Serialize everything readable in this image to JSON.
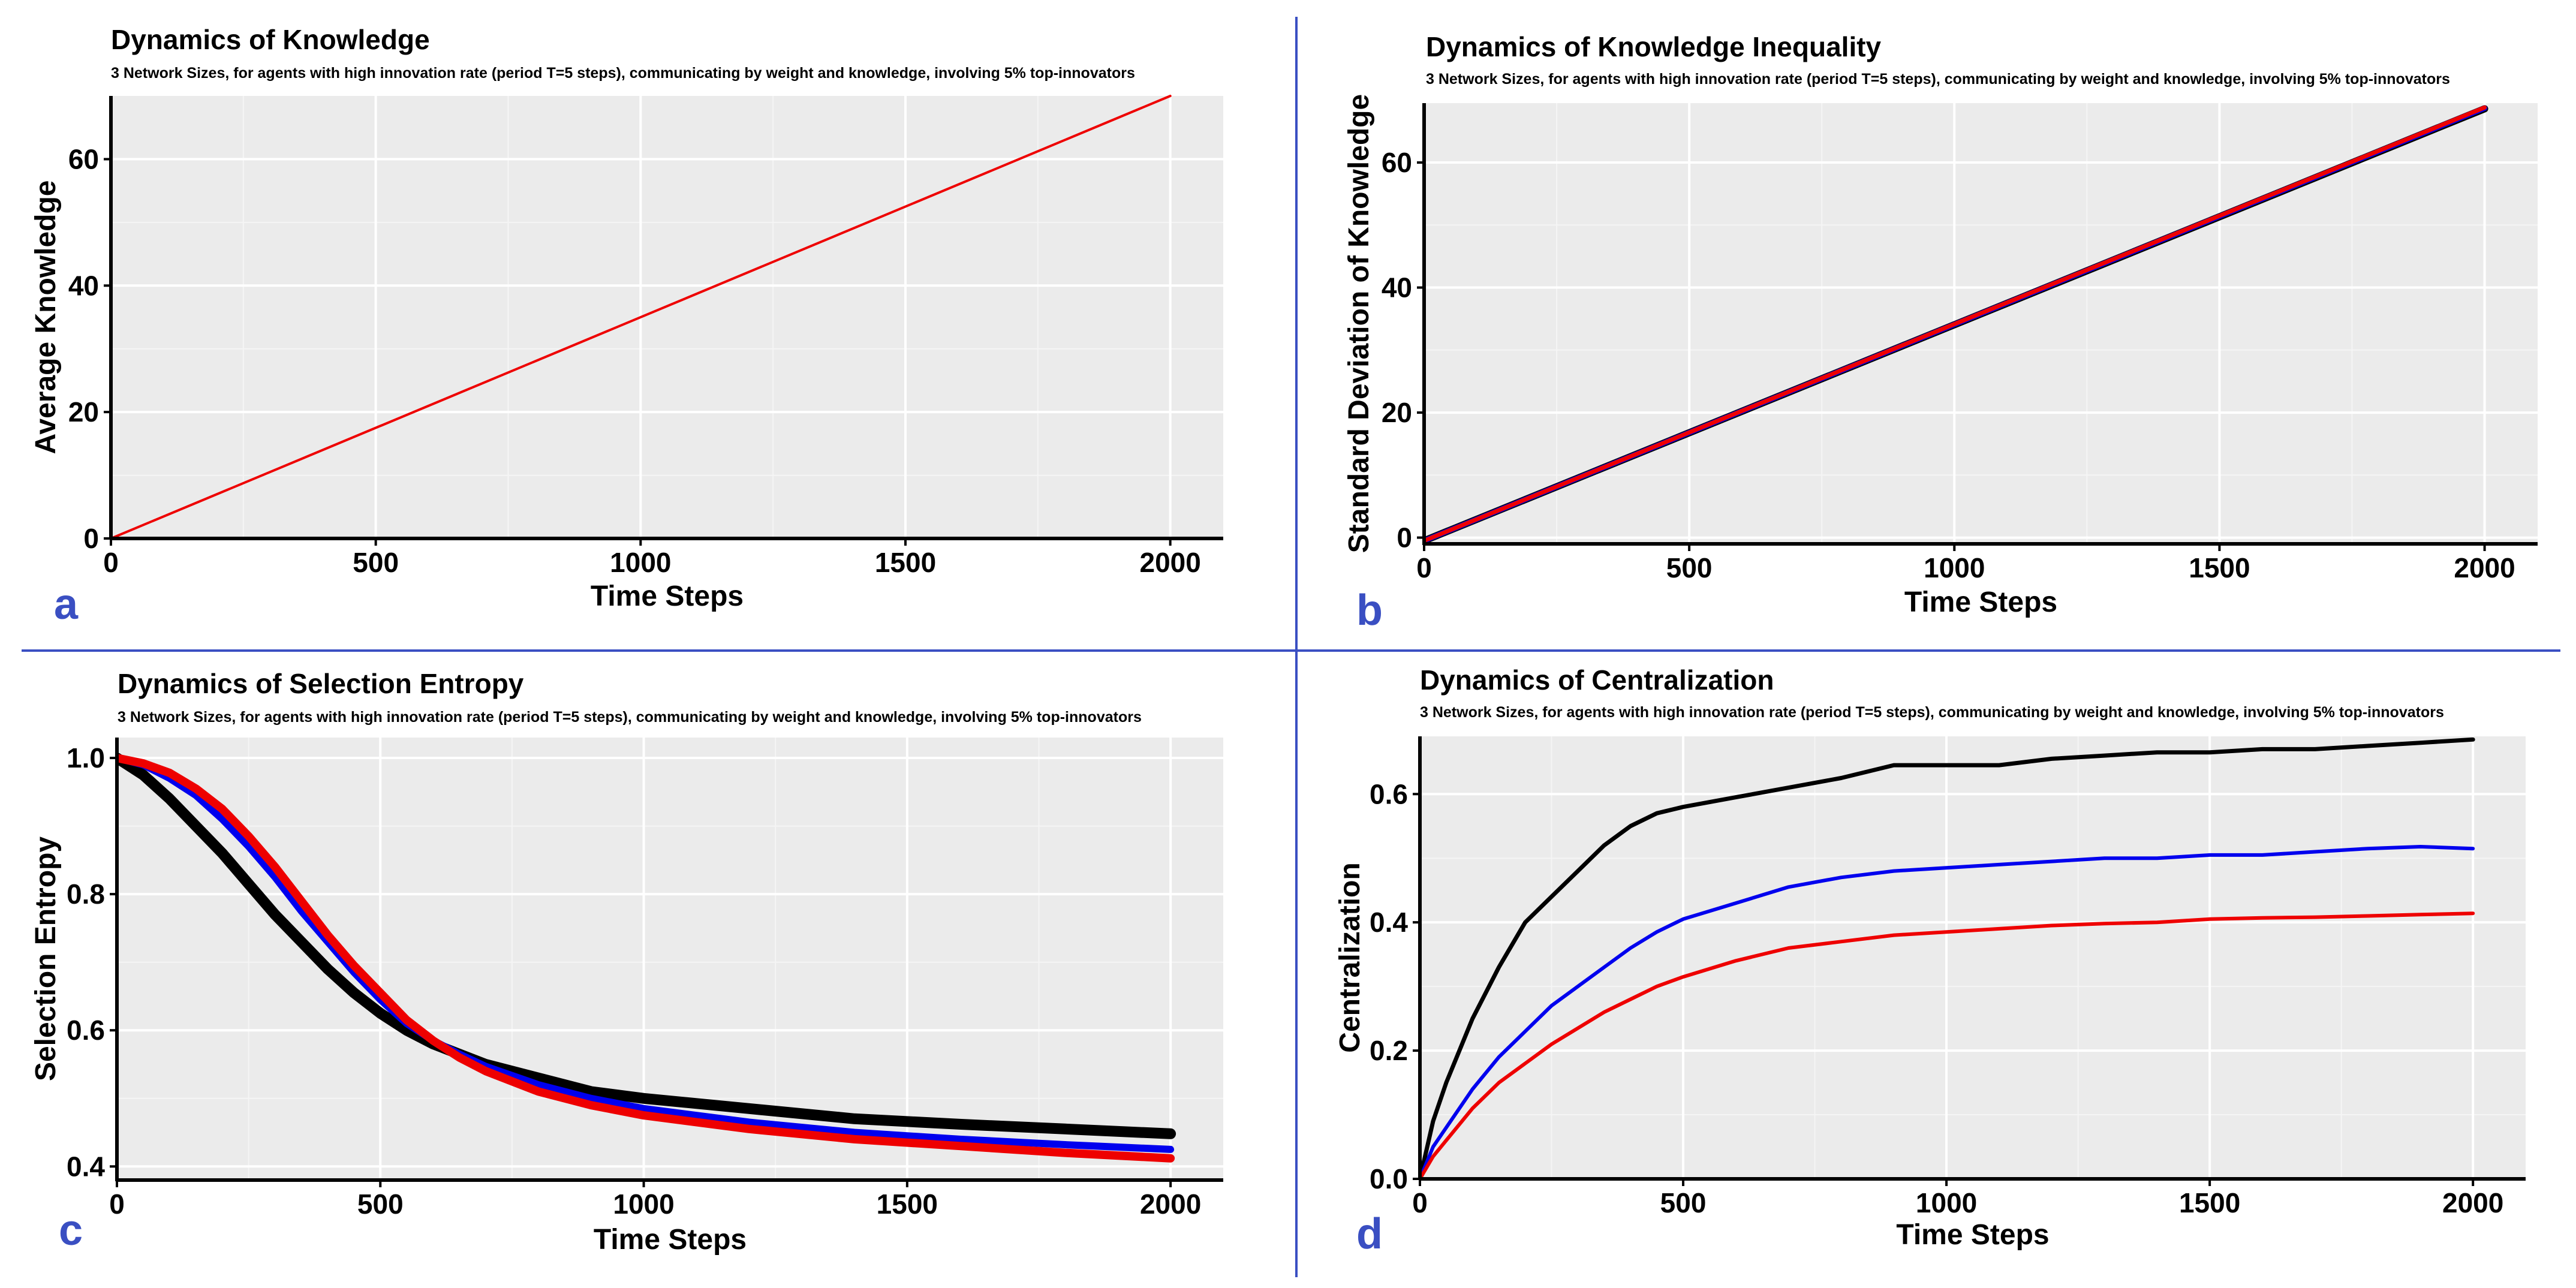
{
  "colors": {
    "divider": "#3a4fc2",
    "panel_letter": "#3a4fc2",
    "panel_bg": "#ebebeb",
    "grid_major": "#ffffff",
    "grid_minor": "#f5f5f5",
    "series_black": "#000000",
    "series_blue": "#0000ee",
    "series_red": "#ee0000"
  },
  "subtitle": "3 Network Sizes, for agents with high innovation rate (period T=5 steps), communicating by weight and knowledge, involving 5% top-innovators",
  "chart_data": [
    {
      "id": "a",
      "type": "line",
      "letter": "a",
      "title": "Dynamics of Knowledge",
      "subtitle": "3 Network Sizes, for agents with high innovation rate (period T=5 steps), communicating by weight and knowledge, involving 5% top-innovators",
      "xlabel": "Time Steps",
      "ylabel": "Average Knowledge",
      "xlim": [
        0,
        2100
      ],
      "ylim": [
        0,
        70
      ],
      "xticks": [
        0,
        500,
        1000,
        1500,
        2000
      ],
      "xtick_labels": [
        "0",
        "500",
        "1000",
        "1500",
        "2000"
      ],
      "yticks": [
        0,
        20,
        40,
        60
      ],
      "ytick_labels": [
        "0",
        "20",
        "40",
        "60"
      ],
      "grid": true,
      "legend": "none",
      "series": [
        {
          "name": "black",
          "color": "#000000",
          "width": 3,
          "x": [
            0,
            2000
          ],
          "y": [
            0,
            70
          ]
        },
        {
          "name": "blue",
          "color": "#0000ee",
          "width": 3,
          "x": [
            0,
            2000
          ],
          "y": [
            0,
            70
          ]
        },
        {
          "name": "red",
          "color": "#ee0000",
          "width": 4,
          "x": [
            0,
            2000
          ],
          "y": [
            0,
            70
          ]
        }
      ]
    },
    {
      "id": "b",
      "type": "line",
      "letter": "b",
      "title": "Dynamics of Knowledge Inequality",
      "subtitle": "3 Network Sizes, for agents with high innovation rate (period T=5 steps), communicating by weight and knowledge, involving 5% top-innovators",
      "xlabel": "Time Steps",
      "ylabel": "Standard Deviation of Knowledge",
      "xlim": [
        0,
        2100
      ],
      "ylim": [
        -1,
        69.5
      ],
      "xticks": [
        0,
        500,
        1000,
        1500,
        2000
      ],
      "xtick_labels": [
        "0",
        "500",
        "1000",
        "1500",
        "2000"
      ],
      "yticks": [
        0,
        20,
        40,
        60
      ],
      "ytick_labels": [
        "0",
        "20",
        "40",
        "60"
      ],
      "grid": true,
      "legend": "none",
      "series": [
        {
          "name": "black",
          "color": "#000000",
          "width": 12,
          "x": [
            0,
            2000
          ],
          "y": [
            -0.5,
            68.6
          ]
        },
        {
          "name": "blue",
          "color": "#0000ee",
          "width": 9,
          "x": [
            0,
            2000
          ],
          "y": [
            -0.5,
            68.7
          ]
        },
        {
          "name": "red",
          "color": "#ee0000",
          "width": 7,
          "x": [
            0,
            2000
          ],
          "y": [
            -0.5,
            68.8
          ]
        }
      ]
    },
    {
      "id": "c",
      "type": "line",
      "letter": "c",
      "title": "Dynamics of Selection Entropy",
      "subtitle": "3 Network Sizes, for agents with high innovation rate (period T=5 steps), communicating by weight and knowledge, involving 5% top-innovators",
      "xlabel": "Time Steps",
      "ylabel": "Selection Entropy",
      "xlim": [
        0,
        2100
      ],
      "ylim": [
        0.38,
        1.03
      ],
      "xticks": [
        0,
        500,
        1000,
        1500,
        2000
      ],
      "xtick_labels": [
        "0",
        "500",
        "1000",
        "1500",
        "2000"
      ],
      "yticks": [
        0.4,
        0.6,
        0.8,
        1.0
      ],
      "ytick_labels": [
        "0.4",
        "0.6",
        "0.8",
        "1.0"
      ],
      "grid": true,
      "legend": "none",
      "series": [
        {
          "name": "black",
          "color": "#000000",
          "width": 18,
          "x": [
            0,
            50,
            100,
            150,
            200,
            250,
            300,
            350,
            400,
            450,
            500,
            550,
            600,
            650,
            700,
            800,
            900,
            1000,
            1200,
            1400,
            1600,
            1800,
            2000
          ],
          "y": [
            1.0,
            0.975,
            0.94,
            0.9,
            0.86,
            0.815,
            0.77,
            0.73,
            0.69,
            0.655,
            0.625,
            0.6,
            0.58,
            0.565,
            0.55,
            0.53,
            0.51,
            0.5,
            0.485,
            0.47,
            0.462,
            0.455,
            0.448
          ]
        },
        {
          "name": "blue",
          "color": "#0000ee",
          "width": 12,
          "x": [
            0,
            50,
            100,
            150,
            200,
            250,
            300,
            350,
            400,
            450,
            500,
            550,
            600,
            650,
            700,
            800,
            900,
            1000,
            1200,
            1400,
            1600,
            1800,
            2000
          ],
          "y": [
            1.0,
            0.99,
            0.97,
            0.945,
            0.91,
            0.87,
            0.825,
            0.775,
            0.73,
            0.685,
            0.645,
            0.61,
            0.585,
            0.565,
            0.547,
            0.52,
            0.5,
            0.485,
            0.465,
            0.45,
            0.44,
            0.432,
            0.425
          ]
        },
        {
          "name": "red",
          "color": "#ee0000",
          "width": 14,
          "x": [
            0,
            50,
            100,
            150,
            200,
            250,
            300,
            350,
            400,
            450,
            500,
            550,
            600,
            650,
            700,
            800,
            900,
            1000,
            1200,
            1400,
            1600,
            1800,
            2000
          ],
          "y": [
            1.0,
            0.992,
            0.978,
            0.955,
            0.925,
            0.885,
            0.84,
            0.79,
            0.74,
            0.695,
            0.655,
            0.615,
            0.585,
            0.56,
            0.54,
            0.51,
            0.49,
            0.475,
            0.455,
            0.44,
            0.43,
            0.42,
            0.412
          ]
        }
      ]
    },
    {
      "id": "d",
      "type": "line",
      "letter": "d",
      "title": "Dynamics of Centralization",
      "subtitle": "3 Network Sizes, for agents with high innovation rate (period T=5 steps), communicating by weight and knowledge, involving 5% top-innovators",
      "xlabel": "Time Steps",
      "ylabel": "Centralization",
      "xlim": [
        0,
        2100
      ],
      "ylim": [
        0,
        0.69
      ],
      "xticks": [
        0,
        500,
        1000,
        1500,
        2000
      ],
      "xtick_labels": [
        "0",
        "500",
        "1000",
        "1500",
        "2000"
      ],
      "yticks": [
        0.0,
        0.2,
        0.4,
        0.6
      ],
      "ytick_labels": [
        "0.0",
        "0.2",
        "0.4",
        "0.6"
      ],
      "grid": true,
      "legend": "none",
      "series": [
        {
          "name": "black",
          "color": "#000000",
          "width": 7,
          "x": [
            0,
            25,
            50,
            100,
            150,
            200,
            250,
            300,
            350,
            400,
            450,
            500,
            600,
            700,
            800,
            900,
            1000,
            1100,
            1200,
            1300,
            1400,
            1500,
            1600,
            1700,
            1800,
            1900,
            2000
          ],
          "y": [
            0.0,
            0.09,
            0.15,
            0.25,
            0.33,
            0.4,
            0.44,
            0.48,
            0.52,
            0.55,
            0.57,
            0.58,
            0.595,
            0.61,
            0.625,
            0.645,
            0.645,
            0.645,
            0.655,
            0.66,
            0.665,
            0.665,
            0.67,
            0.67,
            0.675,
            0.68,
            0.685
          ]
        },
        {
          "name": "blue",
          "color": "#0000ee",
          "width": 6,
          "x": [
            0,
            25,
            50,
            100,
            150,
            200,
            250,
            300,
            350,
            400,
            450,
            500,
            600,
            700,
            800,
            900,
            1000,
            1100,
            1200,
            1300,
            1400,
            1500,
            1600,
            1700,
            1800,
            1900,
            2000
          ],
          "y": [
            0.0,
            0.05,
            0.08,
            0.14,
            0.19,
            0.23,
            0.27,
            0.3,
            0.33,
            0.36,
            0.385,
            0.405,
            0.43,
            0.455,
            0.47,
            0.48,
            0.485,
            0.49,
            0.495,
            0.5,
            0.5,
            0.505,
            0.505,
            0.51,
            0.515,
            0.518,
            0.515
          ]
        },
        {
          "name": "red",
          "color": "#ee0000",
          "width": 6,
          "x": [
            0,
            25,
            50,
            100,
            150,
            200,
            250,
            300,
            350,
            400,
            450,
            500,
            600,
            700,
            800,
            900,
            1000,
            1100,
            1200,
            1300,
            1400,
            1500,
            1600,
            1700,
            1800,
            1900,
            2000
          ],
          "y": [
            0.0,
            0.035,
            0.06,
            0.11,
            0.15,
            0.18,
            0.21,
            0.235,
            0.26,
            0.28,
            0.3,
            0.315,
            0.34,
            0.36,
            0.37,
            0.38,
            0.385,
            0.39,
            0.395,
            0.398,
            0.4,
            0.405,
            0.407,
            0.408,
            0.41,
            0.412,
            0.414
          ]
        }
      ]
    }
  ]
}
